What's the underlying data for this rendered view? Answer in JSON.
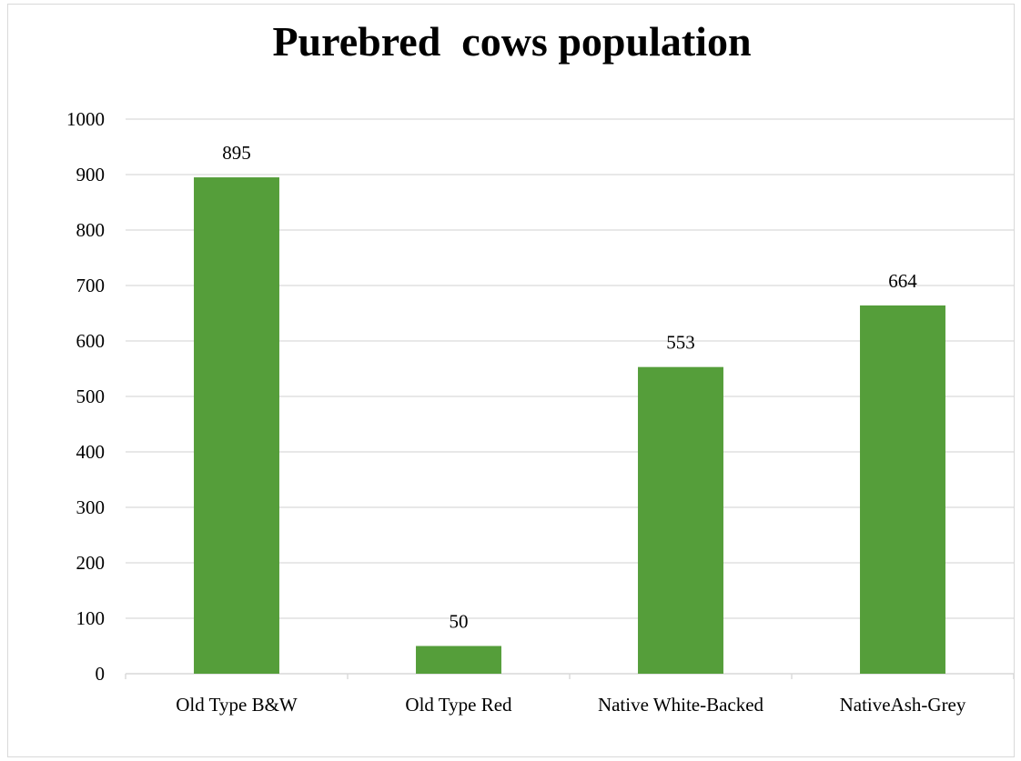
{
  "chart_data": {
    "type": "bar",
    "title": "Purebred  cows population",
    "categories": [
      "Old Type B&W",
      "Old Type Red",
      "Native White-Backed",
      "NativeAsh-Grey"
    ],
    "values": [
      895,
      50,
      553,
      664
    ],
    "data_labels": [
      "895",
      "50",
      "553",
      "664"
    ],
    "y_ticks": [
      "0",
      "100",
      "200",
      "300",
      "400",
      "500",
      "600",
      "700",
      "800",
      "900",
      "1000"
    ],
    "ylim": [
      0,
      1000
    ],
    "grid": true,
    "legend": "none",
    "bar_color": "#559e3a",
    "grid_color": "#d9d9d9"
  }
}
